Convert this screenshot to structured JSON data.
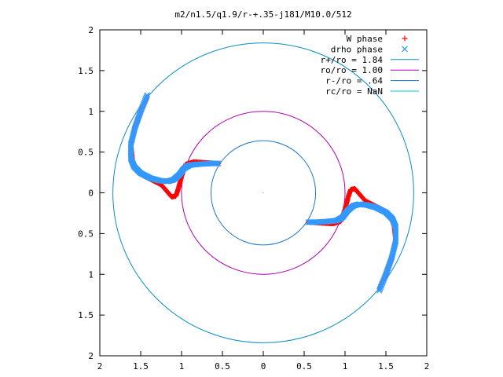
{
  "chart_data": {
    "type": "scatter",
    "title": "m2/n1.5/q1.9/r-+.35-j181/M10.0/512",
    "xlim": [
      -2,
      2
    ],
    "ylim": [
      -2,
      2
    ],
    "x_tick_values": [
      -2,
      -1.5,
      -1,
      -0.5,
      0,
      0.5,
      1,
      1.5,
      2
    ],
    "x_tick_labels": [
      "2",
      "1.5",
      "1",
      "0.5",
      "0",
      "0.5",
      "1",
      "1.5",
      "2"
    ],
    "y_tick_values": [
      2,
      1.5,
      1,
      0.5,
      0,
      -0.5,
      -1,
      -1.5,
      -2
    ],
    "y_tick_labels": [
      "2",
      "1.5",
      "1",
      "0.5",
      "0",
      "0.5",
      "1",
      "1.5",
      "2"
    ],
    "grid": false,
    "legend_position": "top-right",
    "legend": [
      {
        "label": "W phase",
        "kind": "point",
        "marker": "+",
        "color": "#ff0000"
      },
      {
        "label": "drho phase",
        "kind": "point",
        "marker": "x",
        "color": "#3399ff"
      },
      {
        "label": "r+/ro = 1.84",
        "kind": "line",
        "color": "#0a8ec4"
      },
      {
        "label": "ro/ro = 1.00",
        "kind": "line",
        "color": "#b000b0"
      },
      {
        "label": "r-/ro = .64",
        "kind": "line",
        "color": "#1a78c2"
      },
      {
        "label": "rc/ro = NaN",
        "kind": "line",
        "color": "#00cccc"
      }
    ],
    "circles": [
      {
        "name": "r+/ro",
        "radius": 1.84,
        "color": "#0a8ec4"
      },
      {
        "name": "ro/ro",
        "radius": 1.0,
        "color": "#b000b0"
      },
      {
        "name": "r-/ro",
        "radius": 0.64,
        "color": "#1a78c2"
      }
    ],
    "series": [
      {
        "name": "W phase",
        "marker": "+",
        "color": "#ff0000",
        "path": [
          [
            -1.42,
            1.18
          ],
          [
            -1.5,
            1.0
          ],
          [
            -1.57,
            0.8
          ],
          [
            -1.62,
            0.58
          ],
          [
            -1.6,
            0.4
          ],
          [
            -1.55,
            0.28
          ],
          [
            -1.45,
            0.2
          ],
          [
            -1.35,
            0.15
          ],
          [
            -1.25,
            0.1
          ],
          [
            -1.18,
            0.02
          ],
          [
            -1.12,
            -0.05
          ],
          [
            -1.07,
            -0.04
          ],
          [
            -1.04,
            0.05
          ],
          [
            -1.0,
            0.2
          ],
          [
            -0.95,
            0.35
          ],
          [
            -0.85,
            0.38
          ],
          [
            -0.7,
            0.37
          ],
          [
            -0.55,
            0.36
          ]
        ],
        "mirror": true
      },
      {
        "name": "drho phase",
        "marker": "x",
        "color": "#3399ff",
        "path": [
          [
            -1.42,
            1.2
          ],
          [
            -1.5,
            1.0
          ],
          [
            -1.57,
            0.8
          ],
          [
            -1.62,
            0.6
          ],
          [
            -1.62,
            0.42
          ],
          [
            -1.58,
            0.32
          ],
          [
            -1.5,
            0.24
          ],
          [
            -1.38,
            0.18
          ],
          [
            -1.27,
            0.15
          ],
          [
            -1.17,
            0.14
          ],
          [
            -1.1,
            0.16
          ],
          [
            -1.03,
            0.22
          ],
          [
            -0.97,
            0.3
          ],
          [
            -0.9,
            0.34
          ],
          [
            -0.8,
            0.35
          ],
          [
            -0.65,
            0.36
          ],
          [
            -0.55,
            0.36
          ]
        ],
        "mirror": true
      }
    ]
  }
}
